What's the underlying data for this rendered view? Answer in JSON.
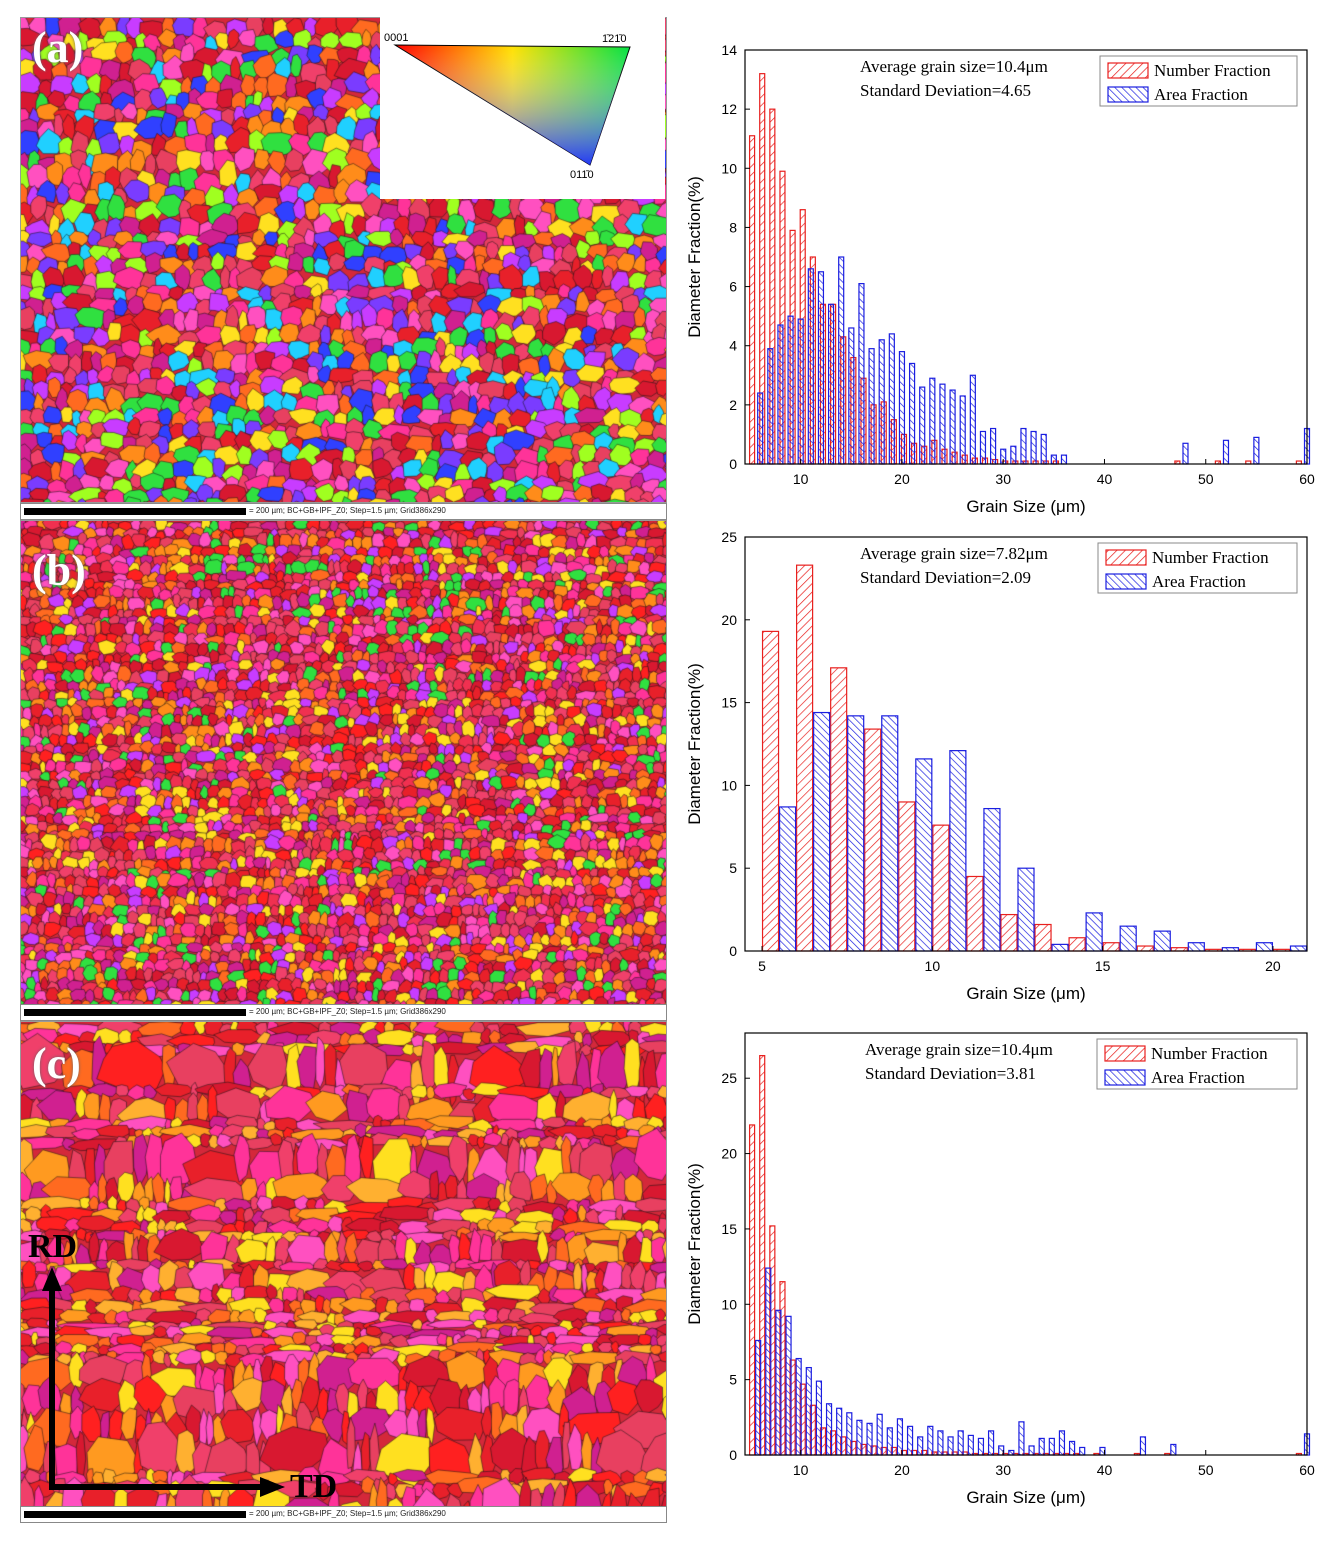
{
  "panels": [
    {
      "label": "(a)",
      "scale_text": "= 200 µm; BC+GB+IPF_Z0; Step=1.5 µm; Grid386x290"
    },
    {
      "label": "(b)",
      "scale_text": "= 200 µm; BC+GB+IPF_Z0; Step=1.5 µm; Grid386x290"
    },
    {
      "label": "(c)",
      "scale_text": "= 200 µm; BC+GB+IPF_Z0; Step=1.5 µm; Grid386x290"
    }
  ],
  "ipf_key": {
    "corner_0001": "0001",
    "corner_1210": "1̄21̄0",
    "corner_0110": "011̄0"
  },
  "axes_labels": {
    "rd": "RD",
    "td": "TD"
  },
  "colors": {
    "number_fraction": "#e8201e",
    "area_fraction": "#1a1ee0"
  },
  "chart_data": [
    {
      "type": "bar",
      "title": "",
      "xlabel": "Grain Size (μm)",
      "ylabel": "Diameter Fraction(%)",
      "xlim": [
        4.5,
        60
      ],
      "ylim": [
        0,
        14
      ],
      "xticks": [
        10,
        20,
        30,
        40,
        50,
        60
      ],
      "yticks": [
        0,
        2,
        4,
        6,
        8,
        10,
        12,
        14
      ],
      "annotation": [
        "Average grain size=10.4μm",
        "Standard Deviation=4.65"
      ],
      "legend": [
        "Number Fraction",
        "Area Fraction"
      ],
      "series": [
        {
          "name": "Number Fraction",
          "x": [
            5.2,
            6.2,
            7.2,
            8.2,
            9.2,
            10.2,
            11.2,
            12.2,
            13.2,
            14.2,
            15.2,
            16.2,
            17.2,
            18.2,
            19.2,
            20.2,
            21.2,
            22.2,
            23.2,
            24.2,
            25.2,
            26.2,
            27.2,
            28.2,
            29.2,
            30.2,
            31.2,
            32.2,
            33.2,
            34.2,
            35.2,
            47.2,
            51.2,
            54.2,
            59.2
          ],
          "values": [
            11.1,
            13.2,
            12.0,
            9.9,
            7.9,
            8.6,
            7.0,
            5.4,
            5.4,
            4.3,
            3.6,
            2.9,
            2.0,
            2.1,
            1.5,
            1.0,
            0.7,
            0.6,
            0.8,
            0.5,
            0.4,
            0.3,
            0.2,
            0.2,
            0.15,
            0.1,
            0.1,
            0.1,
            0.1,
            0.1,
            0.1,
            0.1,
            0.1,
            0.1,
            0.1
          ]
        },
        {
          "name": "Area Fraction",
          "x": [
            6.0,
            7.0,
            8.0,
            9.0,
            10.0,
            11.0,
            12.0,
            13.0,
            14.0,
            15.0,
            16.0,
            17.0,
            18.0,
            19.0,
            20.0,
            21.0,
            22.0,
            23.0,
            24.0,
            25.0,
            26.0,
            27.0,
            28.0,
            29.0,
            30.0,
            31.0,
            32.0,
            33.0,
            34.0,
            35.0,
            36.0,
            48.0,
            52.0,
            55.0,
            60.0
          ],
          "values": [
            2.4,
            3.9,
            4.7,
            5.0,
            4.9,
            6.6,
            6.5,
            5.4,
            7.0,
            4.6,
            6.1,
            3.9,
            4.2,
            4.4,
            3.8,
            3.4,
            2.6,
            2.9,
            2.7,
            2.5,
            2.3,
            3.0,
            1.1,
            1.2,
            0.5,
            0.6,
            1.2,
            1.1,
            1.0,
            0.3,
            0.3,
            0.7,
            0.8,
            0.9,
            1.2
          ]
        }
      ]
    },
    {
      "type": "bar",
      "title": "",
      "xlabel": "Grain Size (μm)",
      "ylabel": "Diameter Fraction(%)",
      "xlim": [
        4.5,
        21
      ],
      "ylim": [
        0,
        25
      ],
      "xticks": [
        5,
        10,
        15,
        20
      ],
      "yticks": [
        0,
        5,
        10,
        15,
        20,
        25
      ],
      "annotation": [
        "Average grain size=7.82μm",
        "Standard Deviation=2.09"
      ],
      "legend": [
        "Number Fraction",
        "Area Fraction"
      ],
      "series": [
        {
          "name": "Number Fraction",
          "x": [
            5.25,
            6.25,
            7.25,
            8.25,
            9.25,
            10.25,
            11.25,
            12.25,
            13.25,
            14.25,
            15.25,
            16.25,
            17.25,
            18.25,
            19.25,
            20.25
          ],
          "values": [
            19.3,
            23.3,
            17.1,
            13.4,
            9.0,
            7.6,
            4.5,
            2.2,
            1.6,
            0.8,
            0.5,
            0.3,
            0.2,
            0.1,
            0.1,
            0.1
          ]
        },
        {
          "name": "Area Fraction",
          "x": [
            5.75,
            6.75,
            7.75,
            8.75,
            9.75,
            10.75,
            11.75,
            12.75,
            13.75,
            14.75,
            15.75,
            16.75,
            17.75,
            18.75,
            19.75,
            20.75
          ],
          "values": [
            8.7,
            14.4,
            14.2,
            14.2,
            11.6,
            12.1,
            8.6,
            5.0,
            0.4,
            2.3,
            1.5,
            1.2,
            0.5,
            0.2,
            0.5,
            0.3
          ]
        }
      ]
    },
    {
      "type": "bar",
      "title": "",
      "xlabel": "Grain Size (μm)",
      "ylabel": "Diameter Fraction(%)",
      "xlim": [
        4.5,
        60
      ],
      "ylim": [
        0,
        28
      ],
      "xticks": [
        10,
        20,
        30,
        40,
        50,
        60
      ],
      "yticks": [
        0,
        5,
        10,
        15,
        20,
        25
      ],
      "annotation": [
        "Average grain size=10.4μm",
        "Standard Deviation=3.81"
      ],
      "legend": [
        "Number Fraction",
        "Area Fraction"
      ],
      "series": [
        {
          "name": "Number Fraction",
          "x": [
            5.2,
            6.2,
            7.2,
            8.2,
            9.2,
            10.2,
            11.2,
            12.2,
            13.2,
            14.2,
            15.2,
            16.2,
            17.2,
            18.2,
            19.2,
            20.2,
            21.2,
            22.2,
            23.2,
            24.2,
            25.2,
            26.2,
            27.2,
            28.2,
            29.2,
            30.2,
            31.2,
            32.2,
            33.2,
            34.2,
            35.2,
            36.2,
            37.2,
            39.2,
            43.2,
            46.2,
            59.2
          ],
          "values": [
            21.9,
            26.5,
            15.2,
            11.5,
            6.3,
            4.7,
            3.3,
            1.8,
            1.6,
            1.2,
            0.9,
            0.7,
            0.6,
            0.5,
            0.5,
            0.3,
            0.3,
            0.3,
            0.2,
            0.2,
            0.2,
            0.2,
            0.1,
            0.1,
            0.1,
            0.1,
            0.1,
            0.1,
            0.1,
            0.1,
            0.1,
            0.1,
            0.1,
            0.1,
            0.1,
            0.1,
            0.1
          ]
        },
        {
          "name": "Area Fraction",
          "x": [
            5.8,
            6.8,
            7.8,
            8.8,
            9.8,
            10.8,
            11.8,
            12.8,
            13.8,
            14.8,
            15.8,
            16.8,
            17.8,
            18.8,
            19.8,
            20.8,
            21.8,
            22.8,
            23.8,
            24.8,
            25.8,
            26.8,
            27.8,
            28.8,
            29.8,
            30.8,
            31.8,
            32.8,
            33.8,
            34.8,
            35.8,
            36.8,
            37.8,
            39.8,
            43.8,
            46.8,
            60.0
          ],
          "values": [
            7.6,
            12.4,
            9.6,
            9.2,
            6.4,
            5.8,
            4.9,
            3.4,
            3.1,
            2.8,
            2.3,
            2.1,
            2.7,
            1.8,
            2.4,
            1.9,
            1.2,
            1.9,
            1.6,
            1.2,
            1.6,
            1.3,
            1.1,
            1.6,
            0.6,
            0.3,
            2.2,
            0.6,
            1.1,
            1.1,
            1.6,
            0.9,
            0.5,
            0.5,
            1.2,
            0.7,
            1.4
          ]
        }
      ]
    }
  ]
}
